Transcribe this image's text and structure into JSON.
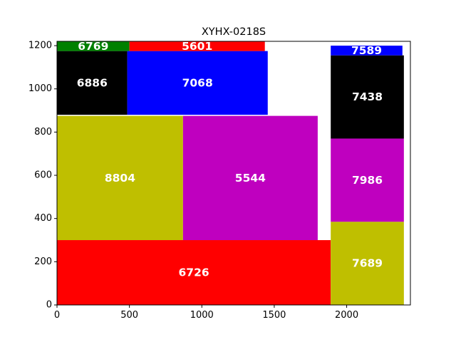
{
  "chart_data": {
    "type": "treemap",
    "title": "XYHX-0218S",
    "xlim": [
      0,
      2440
    ],
    "ylim": [
      0,
      1220
    ],
    "x_ticks": [
      0,
      500,
      1000,
      1500,
      2000
    ],
    "y_ticks": [
      0,
      200,
      400,
      600,
      800,
      1000,
      1200
    ],
    "grid": false,
    "rects": [
      {
        "label": "6726",
        "x": 0,
        "y": 0,
        "w": 1890,
        "h": 300,
        "color": "#ff0000"
      },
      {
        "label": "8804",
        "x": 0,
        "y": 300,
        "w": 870,
        "h": 575,
        "color": "#bfbf00"
      },
      {
        "label": "5544",
        "x": 870,
        "y": 300,
        "w": 930,
        "h": 575,
        "color": "#bf00bf"
      },
      {
        "label": "6886",
        "x": 0,
        "y": 880,
        "w": 485,
        "h": 295,
        "color": "#000000"
      },
      {
        "label": "7068",
        "x": 485,
        "y": 880,
        "w": 970,
        "h": 295,
        "color": "#0000ff"
      },
      {
        "label": "6769",
        "x": 0,
        "y": 1175,
        "w": 500,
        "h": 45,
        "color": "#008000"
      },
      {
        "label": "5601",
        "x": 500,
        "y": 1175,
        "w": 935,
        "h": 45,
        "color": "#ff0000"
      },
      {
        "label": "7689",
        "x": 1890,
        "y": 0,
        "w": 505,
        "h": 385,
        "color": "#bfbf00"
      },
      {
        "label": "7986",
        "x": 1890,
        "y": 385,
        "w": 505,
        "h": 385,
        "color": "#bf00bf"
      },
      {
        "label": "7438",
        "x": 1890,
        "y": 770,
        "w": 505,
        "h": 385,
        "color": "#000000"
      },
      {
        "label": "7589",
        "x": 1890,
        "y": 1155,
        "w": 495,
        "h": 45,
        "color": "#0000ff"
      }
    ]
  }
}
